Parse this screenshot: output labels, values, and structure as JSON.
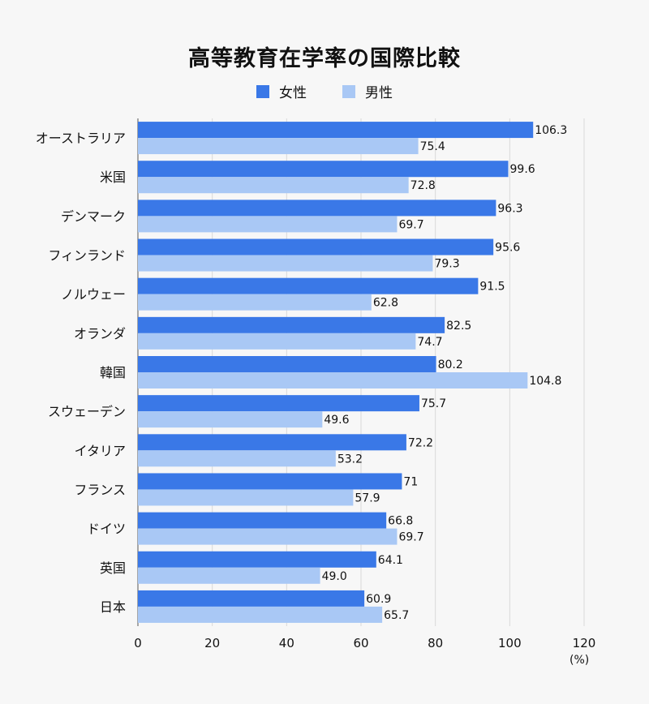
{
  "title": "高等教育在学率の国際比較",
  "unit": "(%)",
  "colors": {
    "female": "#3a78e7",
    "male": "#a9c8f5",
    "grid": "#d9d9d9",
    "axis": "#555555"
  },
  "chart_data": {
    "type": "bar",
    "orientation": "horizontal",
    "categories": [
      "オーストラリア",
      "米国",
      "デンマーク",
      "フィンランド",
      "ノルウェー",
      "オランダ",
      "韓国",
      "スウェーデン",
      "イタリア",
      "フランス",
      "ドイツ",
      "英国",
      "日本"
    ],
    "series": [
      {
        "name": "女性",
        "values": [
          106.3,
          99.6,
          96.3,
          95.6,
          91.5,
          82.5,
          80.2,
          75.7,
          72.2,
          71,
          66.8,
          64.1,
          60.9
        ],
        "labels": [
          "106.3",
          "99.6",
          "96.3",
          "95.6",
          "91.5",
          "82.5",
          "80.2",
          "75.7",
          "72.2",
          "71",
          "66.8",
          "64.1",
          "60.9"
        ]
      },
      {
        "name": "男性",
        "values": [
          75.4,
          72.8,
          69.7,
          79.3,
          62.8,
          74.7,
          104.8,
          49.6,
          53.2,
          57.9,
          69.7,
          49.0,
          65.7
        ],
        "labels": [
          "75.4",
          "72.8",
          "69.7",
          "79.3",
          "62.8",
          "74.7",
          "104.8",
          "49.6",
          "53.2",
          "57.9",
          "69.7",
          "49.0",
          "65.7"
        ]
      }
    ],
    "xlim": [
      0,
      120
    ],
    "xticks": [
      "0",
      "20",
      "40",
      "60",
      "80",
      "100",
      "120"
    ],
    "grid": true,
    "legend": "top-center"
  }
}
